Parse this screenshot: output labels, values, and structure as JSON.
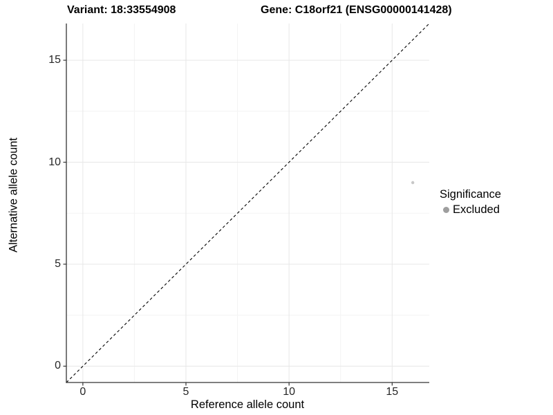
{
  "chart_data": {
    "type": "scatter",
    "title_left": "Variant: 18:33554908",
    "title_right": "Gene: C18orf21 (ENSG00000141428)",
    "xlabel": "Reference allele count",
    "ylabel": "Alternative allele count",
    "xlim": [
      -0.8,
      16.8
    ],
    "ylim": [
      -0.8,
      16.8
    ],
    "x_ticks": [
      0,
      5,
      10,
      15
    ],
    "y_ticks": [
      0,
      5,
      10,
      15
    ],
    "x_minor_ticks": [
      2.5,
      7.5,
      12.5
    ],
    "y_minor_ticks": [
      2.5,
      7.5,
      12.5
    ],
    "grid": "major and minor gridlines on white background",
    "reference_line": {
      "slope": 1,
      "intercept": 0,
      "style": "dashed",
      "color": "#000000"
    },
    "series": [
      {
        "name": "Excluded",
        "color": "#c8c8c8",
        "point_radius": 2.2,
        "points": [
          {
            "x": 16,
            "y": 9
          }
        ]
      }
    ],
    "legend": {
      "position": "right",
      "title": "Significance",
      "items": [
        {
          "label": "Excluded",
          "color": "#9e9e9e",
          "shape": "circle"
        }
      ]
    },
    "colors": {
      "axis_line": "#333333",
      "tick_label": "#262626",
      "grid_major": "#e7e7e7",
      "grid_minor": "#f3f3f3",
      "background": "#ffffff"
    }
  }
}
